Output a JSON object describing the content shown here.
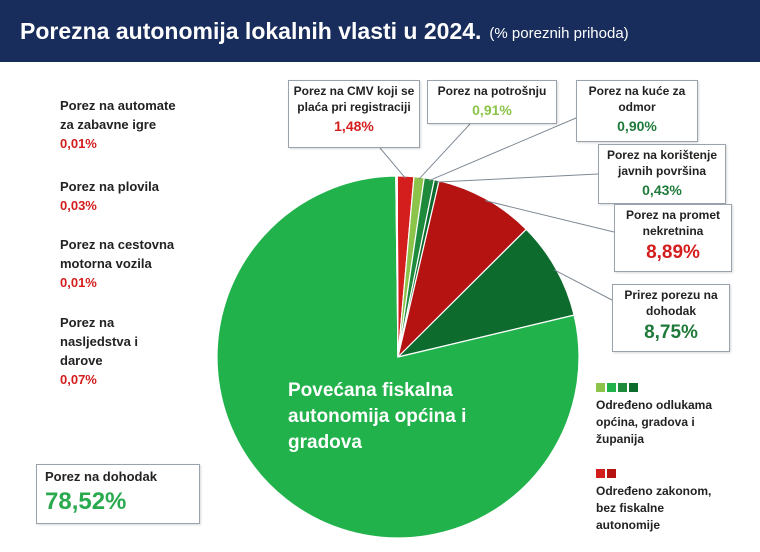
{
  "title": {
    "main": "Porezna autonomija lokalnih vlasti u 2024.",
    "sub": "(% poreznih prihoda)"
  },
  "colors": {
    "main_green": "#22b24c",
    "dark_green": "#0d6b2e",
    "mid_green": "#1e8a3c",
    "light_green": "#8cc34a",
    "red": "#d41e1e",
    "dark_red": "#b51212"
  },
  "chart_data": {
    "type": "pie",
    "title": "Porezna autonomija lokalnih vlasti u 2024.",
    "subtitle": "(% poreznih prihoda)",
    "unit": "%",
    "slices": [
      {
        "label": "Porez na dohodak",
        "value": 78.52,
        "display": "78,52%",
        "group": "zakon",
        "color": "#22b24c"
      },
      {
        "label": "Porez na CMV koji se plaća pri registraciji",
        "value": 1.48,
        "display": "1,48%",
        "group": "zakon",
        "color": "#d41e1e"
      },
      {
        "label": "Porez na potrošnju",
        "value": 0.91,
        "display": "0,91%",
        "group": "odluke",
        "color": "#8cc34a"
      },
      {
        "label": "Porez na kuće za odmor",
        "value": 0.9,
        "display": "0,90%",
        "group": "odluke",
        "color": "#1e8a3c"
      },
      {
        "label": "Porez na korištenje javnih površina",
        "value": 0.43,
        "display": "0,43%",
        "group": "odluke",
        "color": "#0d6b2e"
      },
      {
        "label": "Porez na promet nekretnina",
        "value": 8.89,
        "display": "8,89%",
        "group": "zakon",
        "color": "#b51212"
      },
      {
        "label": "Prirez porezu na dohodak",
        "value": 8.75,
        "display": "8,75%",
        "group": "odluke",
        "color": "#0d6b2e"
      },
      {
        "label": "Porez na automate za zabavne igre",
        "value": 0.01,
        "display": "0,01%",
        "group": "zakon",
        "color": "#d41e1e"
      },
      {
        "label": "Porez na plovila",
        "value": 0.03,
        "display": "0,03%",
        "group": "zakon",
        "color": "#d41e1e"
      },
      {
        "label": "Porez na cestovna motorna vozila",
        "value": 0.01,
        "display": "0,01%",
        "group": "zakon",
        "color": "#d41e1e"
      },
      {
        "label": "Porez na nasljedstva i darove",
        "value": 0.07,
        "display": "0,07%",
        "group": "zakon",
        "color": "#d41e1e"
      }
    ],
    "annotation": "Povećana fiskalna autonomija općina i gradova",
    "legend": [
      {
        "label": "Određeno odlukama općina, gradova i županija",
        "colors": [
          "#8cc34a",
          "#22b24c",
          "#1e8a3c",
          "#0d6b2e"
        ]
      },
      {
        "label": "Određeno zakonom, bez fiskalne autonomije",
        "colors": [
          "#d41e1e",
          "#b51212"
        ]
      }
    ]
  },
  "labels": {
    "automati": {
      "name1": "Porez na automate",
      "name2": "za zabavne igre",
      "value": "0,01%"
    },
    "plovila": {
      "name1": "Porez na plovila",
      "value": "0,03%"
    },
    "cestovna": {
      "name1": "Porez na cestovna",
      "name2": "motorna vozila",
      "value": "0,01%"
    },
    "nasljedstva": {
      "name1": "Porez na",
      "name2": "nasljedstva i",
      "name3": "darove",
      "value": "0,07%"
    },
    "cmv": {
      "name1": "Porez na CMV koji se",
      "name2": "plaća pri registraciji",
      "value": "1,48%"
    },
    "potrosnja": {
      "name1": "Porez na potrošnju",
      "value": "0,91%"
    },
    "kuce": {
      "name1": "Porez na kuće za",
      "name2": "odmor",
      "value": "0,90%"
    },
    "javne": {
      "name1": "Porez na korištenje",
      "name2": "javnih površina",
      "value": "0,43%"
    },
    "promet": {
      "name1": "Porez na promet",
      "name2": "nekretnina",
      "value": "8,89%"
    },
    "prirez": {
      "name1": "Prirez porezu na",
      "name2": "dohodak",
      "value": "8,75%"
    },
    "dohodak": {
      "name": "Porez na dohodak",
      "value": "78,52%"
    },
    "center": {
      "line1": "Povećana fiskalna",
      "line2": "autonomija općina i",
      "line3": "gradova"
    },
    "legend1": {
      "line1": "Određeno odlukama",
      "line2": "općina, gradova i",
      "line3": "županija"
    },
    "legend2": {
      "line1": "Određeno zakonom,",
      "line2": "bez fiskalne",
      "line3": "autonomije"
    }
  }
}
